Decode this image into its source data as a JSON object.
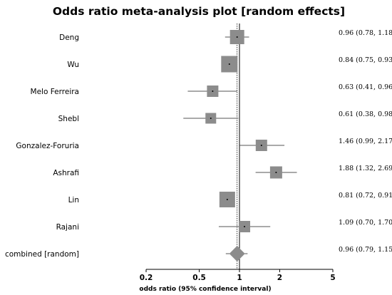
{
  "chart_data": {
    "type": "forest",
    "title": "Odds ratio meta-analysis plot [random effects]",
    "xlabel": "odds ratio (95% confidence interval)",
    "x_scale": "log",
    "xlim": [
      0.2,
      5
    ],
    "ticks": [
      {
        "value": 0.2,
        "label": "0.2"
      },
      {
        "value": 0.5,
        "label": "0.5"
      },
      {
        "value": 1,
        "label": "1"
      },
      {
        "value": 2,
        "label": "2"
      },
      {
        "value": 5,
        "label": "5"
      }
    ],
    "reference_line": 1,
    "pooled_line": 0.96,
    "studies": [
      {
        "name": "Deng",
        "or": 0.96,
        "lower": 0.78,
        "upper": 1.18,
        "weight": 1.0,
        "label": "0.96 (0.78, 1.18)"
      },
      {
        "name": "Wu",
        "or": 0.84,
        "lower": 0.75,
        "upper": 0.93,
        "weight": 1.15,
        "label": "0.84 (0.75, 0.93)"
      },
      {
        "name": "Melo Ferreira",
        "or": 0.63,
        "lower": 0.41,
        "upper": 0.96,
        "weight": 0.8,
        "label": "0.63 (0.41, 0.96)"
      },
      {
        "name": "Shebl",
        "or": 0.61,
        "lower": 0.38,
        "upper": 0.98,
        "weight": 0.75,
        "label": "0.61 (0.38, 0.98)"
      },
      {
        "name": "Gonzalez-Foruria",
        "or": 1.46,
        "lower": 0.99,
        "upper": 2.17,
        "weight": 0.8,
        "label": "1.46 (0.99, 2.17)"
      },
      {
        "name": "Ashrafi",
        "or": 1.88,
        "lower": 1.32,
        "upper": 2.69,
        "weight": 0.85,
        "label": "1.88 (1.32, 2.69)"
      },
      {
        "name": "Lin",
        "or": 0.81,
        "lower": 0.72,
        "upper": 0.91,
        "weight": 1.1,
        "label": "0.81 (0.72, 0.91)"
      },
      {
        "name": "Rajani",
        "or": 1.09,
        "lower": 0.7,
        "upper": 1.7,
        "weight": 0.8,
        "label": "1.09 (0.70, 1.70)"
      }
    ],
    "combined": {
      "name": "combined [random]",
      "or": 0.96,
      "lower": 0.79,
      "upper": 1.15,
      "label": "0.96 (0.79, 1.15)"
    },
    "colors": {
      "box": "#8c8c8c",
      "diamond": "#8c8c8c",
      "line": "#000000",
      "ci": "#555555"
    }
  }
}
